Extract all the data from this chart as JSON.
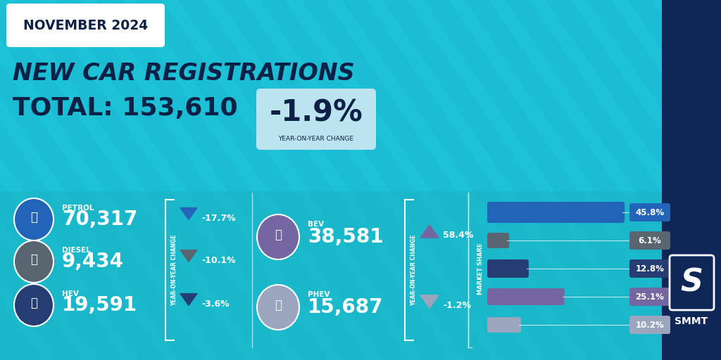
{
  "bg_color": "#1bbdd4",
  "dark_navy": "#0d2045",
  "sidebar_color": "#0f2756",
  "bottom_panel_color": "#19afc0",
  "stripe_color": "#28cfe0",
  "month_label": "NOVEMBER 2024",
  "title_line1": "NEW CAR REGISTRATIONS",
  "total_label": "TOTAL: 153,610",
  "yoy_change": "-1.9%",
  "yoy_sub": "YEAR-ON-YEAR CHANGE",
  "petrol_label": "PETROL",
  "petrol_value": "70,317",
  "petrol_yoy": "-17.7%",
  "petrol_circle_color": "#2265b8",
  "diesel_label": "DIESEL",
  "diesel_value": "9,434",
  "diesel_yoy": "-10.1%",
  "diesel_circle_color": "#596570",
  "hev_label": "HEV",
  "hev_value": "19,591",
  "hev_yoy": "-3.6%",
  "hev_circle_color": "#253d72",
  "bev_label": "BEV",
  "bev_value": "38,581",
  "bev_yoy": "58.4%",
  "bev_circle_color": "#7466a0",
  "phev_label": "PHEV",
  "phev_value": "15,687",
  "phev_yoy": "-1.2%",
  "phev_circle_color": "#9ba5be",
  "bar_colors": [
    "#2265b8",
    "#596570",
    "#253d72",
    "#7466a0",
    "#9ba5be"
  ],
  "bar_values": [
    45.8,
    6.1,
    12.8,
    25.1,
    10.2
  ],
  "bar_labels": [
    "45.8%",
    "6.1%",
    "12.8%",
    "25.1%",
    "10.2%"
  ],
  "label_box_colors": [
    "#2265b8",
    "#596570",
    "#253d72",
    "#7466a0",
    "#9ba5be"
  ],
  "market_share_label": "MARKET SHARE",
  "smmt_color": "#0f2756"
}
